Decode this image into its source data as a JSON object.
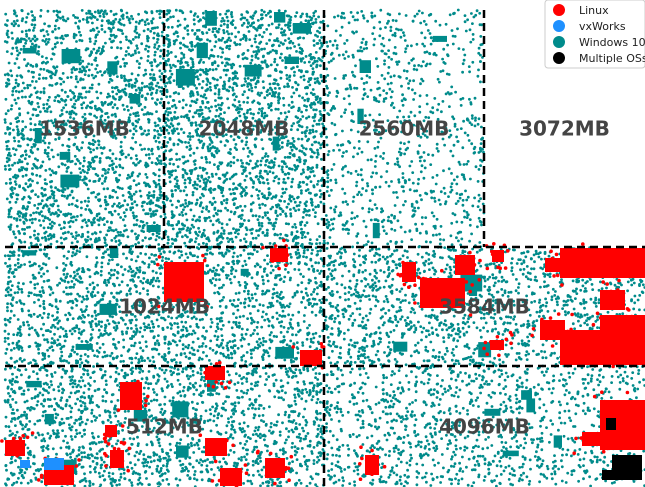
{
  "chart_data": {
    "type": "scatter",
    "title": "",
    "xlabel": "",
    "ylabel": "",
    "grid": false,
    "legend_position": "top-right",
    "series": [
      {
        "name": "Linux",
        "color": "#ff0000"
      },
      {
        "name": "vxWorks",
        "color": "#1e90ff"
      },
      {
        "name": "Windows 10",
        "color": "#008b8b"
      },
      {
        "name": "Multiple OSs",
        "color": "#000000"
      }
    ],
    "regions": [
      {
        "label": "1536MB",
        "col": 0,
        "row": 0,
        "density": 0.55
      },
      {
        "label": "2048MB",
        "col": 1,
        "row": 0,
        "density": 0.6
      },
      {
        "label": "2560MB",
        "col": 2,
        "row": 0,
        "density": 0.25
      },
      {
        "label": "3072MB",
        "col": 3,
        "row": 0,
        "density": 0.0
      },
      {
        "label": "1024MB",
        "col": "0-1",
        "row": 1,
        "density": 0.5
      },
      {
        "label": "3584MB",
        "col": "2-3",
        "row": 1,
        "density": 0.45
      },
      {
        "label": "512MB",
        "col": "0-1",
        "row": 2,
        "density": 0.5
      },
      {
        "label": "4096MB",
        "col": "2-3",
        "row": 2,
        "density": 0.35
      }
    ]
  }
}
